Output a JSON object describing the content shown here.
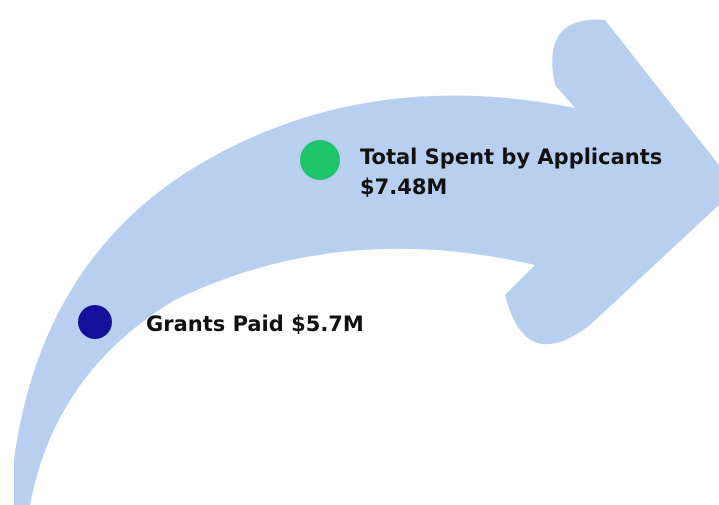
{
  "colors": {
    "arrow": "#b8cff0",
    "grants_marker": "#15109c",
    "spent_marker": "#1ec46a"
  },
  "items": [
    {
      "marker": "grants-paid-dot",
      "text": "Grants Paid $5.7M"
    },
    {
      "marker": "total-spent-dot",
      "line1": "Total Spent by Applicants",
      "line2": "$7.48M"
    }
  ]
}
